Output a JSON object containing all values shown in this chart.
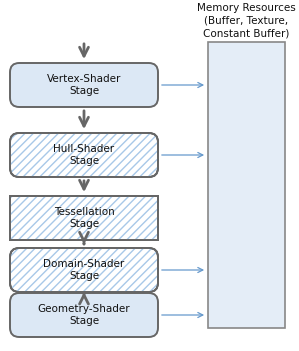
{
  "title": "Memory Resources\n(Buffer, Texture,\nConstant Buffer)",
  "stages": [
    {
      "label": "Vertex-Shader\nStage",
      "shape": "rounded",
      "hatch": false,
      "has_memory_arrow": true
    },
    {
      "label": "Hull-Shader\nStage",
      "shape": "rounded",
      "hatch": true,
      "has_memory_arrow": true
    },
    {
      "label": "Tessellation\nStage",
      "shape": "rect",
      "hatch": true,
      "has_memory_arrow": false
    },
    {
      "label": "Domain-Shader\nStage",
      "shape": "rounded",
      "hatch": true,
      "has_memory_arrow": true
    },
    {
      "label": "Geometry-Shader\nStage",
      "shape": "rounded",
      "hatch": false,
      "has_memory_arrow": true
    }
  ],
  "fill_color_plain": "#dce8f5",
  "hatch_fg": "#a8c8e8",
  "stroke_color": "#666666",
  "arrow_color": "#6699cc",
  "memory_fill": "#e4edf7",
  "memory_stroke": "#888888",
  "text_color": "#111111",
  "font_size": 7.5,
  "title_font_size": 7.5
}
